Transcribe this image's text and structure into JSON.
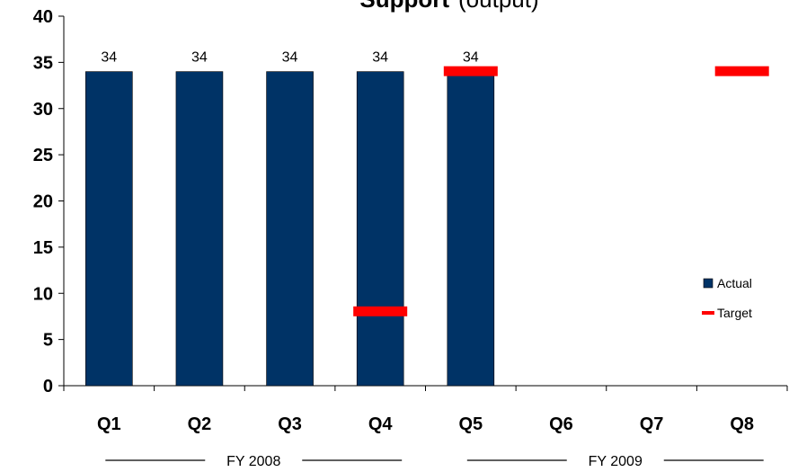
{
  "chart_data": {
    "type": "bar",
    "title_bold": "Support",
    "title_rest": "(output)",
    "categories": [
      "Q1",
      "Q2",
      "Q3",
      "Q4",
      "Q5",
      "Q6",
      "Q7",
      "Q8"
    ],
    "ylim": [
      0,
      40
    ],
    "yticks": [
      0,
      5,
      10,
      15,
      20,
      25,
      30,
      35,
      40
    ],
    "series": [
      {
        "name": "Actual",
        "kind": "bar",
        "color": "#003366",
        "values": [
          34,
          34,
          34,
          34,
          34,
          null,
          null,
          null
        ],
        "labels": [
          "34",
          "34",
          "34",
          "34",
          "34",
          "",
          "",
          ""
        ]
      },
      {
        "name": "Target",
        "kind": "marker",
        "color": "#ff0000",
        "values": [
          null,
          null,
          null,
          8,
          34,
          null,
          null,
          34
        ]
      }
    ],
    "groups": [
      {
        "label": "FY 2008",
        "from": 0,
        "to": 3
      },
      {
        "label": "FY 2009",
        "from": 4,
        "to": 7
      }
    ],
    "legend_position": "right",
    "grid": false
  }
}
